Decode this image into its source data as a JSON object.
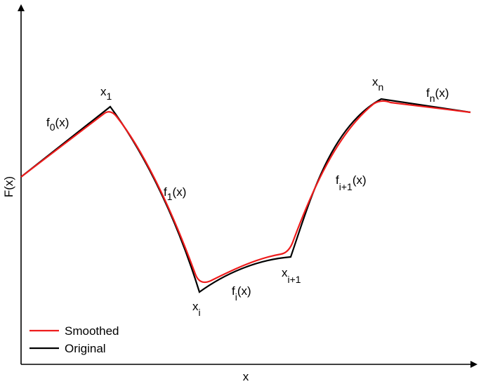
{
  "axes": {
    "xlabel": "x",
    "ylabel": "F(x)"
  },
  "legend": {
    "placement": "bottom-left",
    "items": [
      {
        "label": "Smoothed",
        "color": "#ee1c1c"
      },
      {
        "label": "Original",
        "color": "#000000"
      }
    ]
  },
  "point_labels": {
    "x1": {
      "base": "x",
      "sub": "1"
    },
    "xi": {
      "base": "x",
      "sub": "i"
    },
    "xi1": {
      "base": "x",
      "sub": "i+1"
    },
    "xn": {
      "base": "x",
      "sub": "n"
    }
  },
  "function_labels": {
    "f0": {
      "base": "f",
      "sub": "0",
      "tail": "(x)"
    },
    "f1": {
      "base": "f",
      "sub": "1",
      "tail": "(x)"
    },
    "fi": {
      "base": "f",
      "sub": "i",
      "tail": "(x)"
    },
    "fi1": {
      "base": "f",
      "sub": "i+1",
      "tail": "(x)"
    },
    "fn": {
      "base": "f",
      "sub": "n",
      "tail": "(x)"
    }
  },
  "colors": {
    "original": "#000000",
    "smoothed": "#ee1c1c",
    "axis": "#000000"
  }
}
